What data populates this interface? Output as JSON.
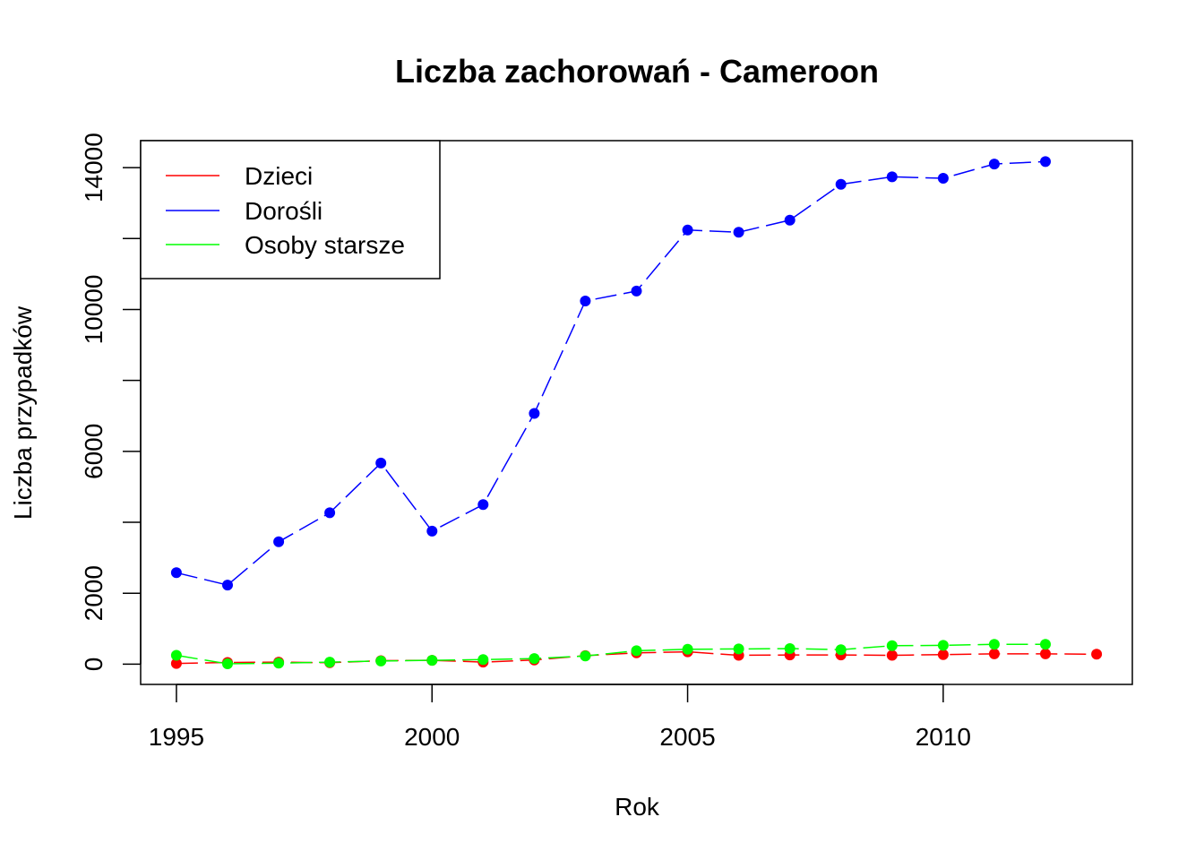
{
  "chart_data": {
    "type": "line",
    "title": "Liczba zachorowań -  Cameroon",
    "xlabel": "Rok",
    "ylabel": "Liczba przypadków",
    "xlim": [
      1994.3,
      2013.7
    ],
    "ylim": [
      -570,
      14760
    ],
    "x_ticks": [
      1995,
      2000,
      2005,
      2010
    ],
    "y_ticks": [
      0,
      2000,
      4000,
      6000,
      8000,
      10000,
      12000,
      14000
    ],
    "y_tick_labels": [
      "0",
      "2000",
      "",
      "6000",
      "",
      "10000",
      "",
      "14000"
    ],
    "grid": false,
    "legend_position": "top-left",
    "series": [
      {
        "name": "Dzieci",
        "color": "#ff0000",
        "x": [
          1995,
          1996,
          1997,
          1998,
          1999,
          2000,
          2001,
          2002,
          2003,
          2004,
          2005,
          2006,
          2007,
          2008,
          2009,
          2010,
          2011,
          2012,
          2013
        ],
        "y": [
          20,
          50,
          60,
          40,
          100,
          110,
          60,
          120,
          240,
          320,
          350,
          250,
          260,
          260,
          250,
          270,
          290,
          290,
          280
        ]
      },
      {
        "name": "Dorośli",
        "color": "#0000ff",
        "x": [
          1995,
          1996,
          1997,
          1998,
          1999,
          2000,
          2001,
          2002,
          2003,
          2004,
          2005,
          2006,
          2007,
          2008,
          2009,
          2010,
          2011,
          2012
        ],
        "y": [
          2580,
          2230,
          3450,
          4270,
          5670,
          3750,
          4500,
          7070,
          10240,
          10520,
          12240,
          12180,
          12520,
          13530,
          13740,
          13700,
          14100,
          14170
        ]
      },
      {
        "name": "Osoby starsze",
        "color": "#00ff00",
        "x": [
          1995,
          1996,
          1997,
          1998,
          1999,
          2000,
          2001,
          2002,
          2003,
          2004,
          2005,
          2006,
          2007,
          2008,
          2009,
          2010,
          2011,
          2012
        ],
        "y": [
          250,
          10,
          30,
          60,
          90,
          110,
          130,
          160,
          230,
          380,
          420,
          430,
          440,
          410,
          520,
          530,
          560,
          560
        ]
      }
    ]
  }
}
